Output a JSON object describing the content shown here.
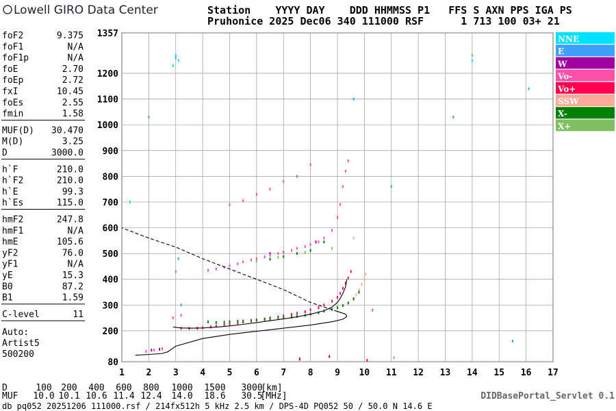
{
  "header": {
    "logo": "Lowell GIRO Data Center",
    "columns_line": "Station    YYYY DAY    DDD HHMMSS P1   FFS S AXN PPS IGA PS",
    "values_line": "Pruhonice 2025 Dec06 340 111000 RSF      1 713 100 03+ 21"
  },
  "parameters": [
    [
      [
        "foF2",
        "9.375"
      ],
      [
        "foF1",
        "N/A"
      ],
      [
        "foF1p",
        "N/A"
      ],
      [
        "foE",
        "2.70"
      ],
      [
        "foEp",
        "2.72"
      ],
      [
        "fxI",
        "10.45"
      ],
      [
        "foEs",
        "2.55"
      ],
      [
        "fmin",
        "1.58"
      ]
    ],
    [
      [
        "MUF(D)",
        "30.470"
      ],
      [
        "M(D)",
        "3.25"
      ],
      [
        "D",
        "3000.0"
      ]
    ],
    [
      [
        "h`F",
        "210.0"
      ],
      [
        "h`F2",
        "210.0"
      ],
      [
        "h`E",
        "99.3"
      ],
      [
        "h`Es",
        "115.0"
      ]
    ],
    [
      [
        "hmF2",
        "247.8"
      ],
      [
        "hmF1",
        "N/A"
      ],
      [
        "hmE",
        "105.6"
      ],
      [
        "yF2",
        "76.0"
      ],
      [
        "yF1",
        "N/A"
      ],
      [
        "yE",
        "15.3"
      ],
      [
        "B0",
        "87.2"
      ],
      [
        "B1",
        "1.59"
      ]
    ],
    [
      [
        "C-level",
        "11"
      ]
    ]
  ],
  "autoscaling": [
    "Auto:",
    "Artist5",
    "500200"
  ],
  "chart_data": {
    "type": "scatter",
    "xlim": [
      1,
      17
    ],
    "xticks": [
      1,
      2,
      3,
      4,
      5,
      6,
      7,
      8,
      9,
      10,
      11,
      12,
      13,
      14,
      15,
      16,
      17
    ],
    "ylim": [
      80,
      1357
    ],
    "yticks": [
      80,
      200,
      300,
      400,
      500,
      600,
      700,
      800,
      900,
      1000,
      1100,
      1200,
      1357
    ],
    "grid": true,
    "series": [
      {
        "name": "NNE",
        "color": "#00e0ff",
        "x": [
          2.9,
          3.0,
          3.1,
          1.3,
          14.0
        ],
        "y": [
          1230,
          1270,
          1250,
          700,
          1250
        ]
      },
      {
        "name": "E",
        "color": "#3ca0ff",
        "x": [
          2.0,
          3.0,
          9.6,
          11.0,
          13.3,
          15.5,
          16.1,
          3.0,
          3.2,
          3.1
        ],
        "y": [
          1030,
          1260,
          1100,
          760,
          1030,
          160,
          1140,
          430,
          300,
          480
        ]
      },
      {
        "name": "W",
        "color": "#a000a0",
        "x": [
          7.6,
          8.7,
          2.1,
          2.4,
          6.5,
          7.0,
          8.2
        ],
        "y": [
          90,
          100,
          125,
          128,
          500,
          505,
          545
        ]
      },
      {
        "name": "Vo-",
        "color": "#ff50a8",
        "x": [
          4.2,
          4.5,
          4.8,
          5.0,
          5.3,
          5.5,
          5.8,
          6.0,
          6.3,
          6.5,
          6.8,
          7.0,
          7.3,
          7.5,
          7.8,
          8.0,
          8.3,
          8.5,
          8.8,
          9.0,
          9.1,
          9.2,
          9.3,
          9.4,
          5.0,
          5.5,
          6.0,
          6.5,
          7.0,
          7.5,
          8.0,
          1.9,
          2.2,
          2.5,
          2.9,
          3.2,
          10.3
        ],
        "y": [
          435,
          440,
          447,
          452,
          460,
          468,
          475,
          480,
          487,
          493,
          500,
          505,
          512,
          520,
          527,
          535,
          545,
          560,
          590,
          640,
          690,
          760,
          820,
          860,
          690,
          705,
          730,
          750,
          780,
          800,
          845,
          120,
          125,
          130,
          250,
          260,
          280
        ]
      },
      {
        "name": "Vo+",
        "color": "#ff0050",
        "x": [
          3.2,
          3.5,
          3.8,
          4.0,
          4.3,
          4.5,
          4.8,
          5.0,
          5.3,
          5.5,
          5.8,
          6.0,
          6.3,
          6.5,
          6.8,
          7.0,
          7.3,
          7.5,
          7.8,
          8.0,
          8.3,
          8.5,
          8.8,
          9.0,
          9.1,
          9.2,
          9.3,
          9.4,
          9.5,
          7.6,
          10.1
        ],
        "y": [
          210,
          209,
          210,
          212,
          215,
          218,
          222,
          226,
          230,
          234,
          238,
          242,
          246,
          250,
          254,
          258,
          263,
          268,
          274,
          281,
          290,
          300,
          315,
          330,
          345,
          365,
          385,
          405,
          430,
          90,
          85
        ]
      },
      {
        "name": "SSW",
        "color": "#ffaa98",
        "x": [
          9.6,
          9.7,
          9.8,
          9.9,
          10.0,
          10.05,
          9.6
        ],
        "y": [
          320,
          340,
          360,
          380,
          400,
          420,
          560
        ]
      },
      {
        "name": "X-",
        "color": "#008000",
        "x": [
          4.2,
          4.5,
          4.8,
          5.0,
          5.3,
          5.5,
          5.8,
          6.0,
          6.3,
          6.5,
          6.8,
          7.0,
          7.3,
          7.5,
          7.8,
          8.0,
          8.3,
          8.5,
          8.8,
          9.0,
          9.2,
          9.4,
          9.6,
          9.8,
          6.5,
          7.0,
          7.5,
          8.0,
          8.5
        ],
        "y": [
          235,
          232,
          233,
          235,
          237,
          238,
          240,
          242,
          244,
          246,
          248,
          250,
          253,
          256,
          260,
          265,
          270,
          276,
          283,
          290,
          298,
          308,
          325,
          350,
          478,
          488,
          500,
          512,
          545
        ]
      },
      {
        "name": "X+",
        "color": "#80bf60",
        "x": [
          6.0,
          6.8,
          7.8,
          8.8,
          11.1,
          14.0
        ],
        "y": [
          470,
          485,
          505,
          520,
          95,
          1270
        ]
      }
    ],
    "curves": [
      {
        "style": "solid",
        "x": [
          2.9,
          3.2,
          3.6,
          4.0,
          4.5,
          5.0,
          5.5,
          6.0,
          6.5,
          7.0,
          7.5,
          8.0,
          8.5,
          8.8,
          9.0,
          9.1,
          9.2,
          9.3,
          9.35
        ],
        "y": [
          215,
          211,
          210,
          211,
          214,
          219,
          225,
          232,
          239,
          246,
          254,
          264,
          278,
          292,
          310,
          325,
          345,
          370,
          400
        ]
      },
      {
        "style": "solid",
        "x": [
          1.5,
          2.0,
          2.5,
          2.7,
          3.0,
          4.0,
          5.0,
          6.0,
          7.0,
          8.0,
          8.8,
          9.2,
          9.35,
          9.3,
          9.0
        ],
        "y": [
          105,
          108,
          112,
          118,
          140,
          170,
          186,
          198,
          210,
          222,
          235,
          245,
          255,
          265,
          275
        ]
      },
      {
        "style": "dashed",
        "x": [
          9.0,
          8.0,
          7.0,
          6.0,
          5.0,
          4.0,
          3.0,
          2.0,
          1.0
        ],
        "y": [
          275,
          310,
          360,
          400,
          440,
          480,
          525,
          560,
          600
        ]
      }
    ]
  },
  "footer": {
    "d_label": "D",
    "d_values": [
      "100",
      "200",
      "400",
      "600",
      "800",
      "1000",
      "1500",
      "3000"
    ],
    "d_unit": "[km]",
    "muf_label": "MUF",
    "muf_values": [
      "10.0",
      "10.1",
      "10.6",
      "11.4",
      "12.4",
      "14.0",
      "18.6",
      "30.5"
    ],
    "muf_unit": "[MHz]",
    "server": "DIDBasePortal_Servlet 0.1",
    "file_line": "db pq052 20251206 111000.rsf / 214fx512h 5 kHz 2.5 km / DPS-4D PQ052 50 / 50.0 N 14.6 E"
  }
}
